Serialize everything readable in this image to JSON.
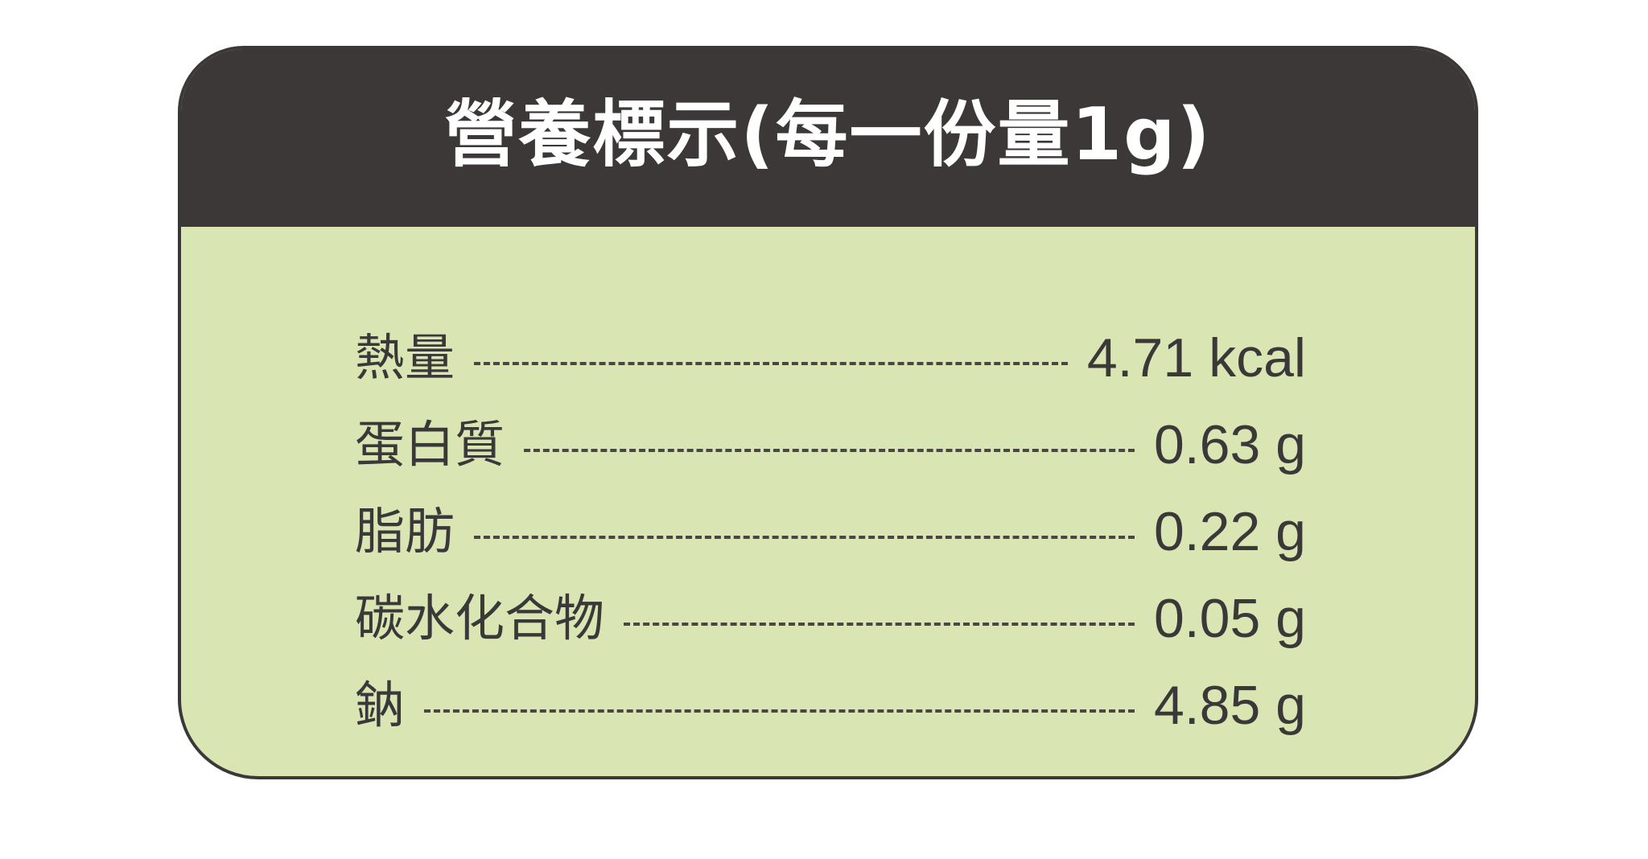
{
  "title": "營養標示(每一份量1g)",
  "colors": {
    "header": "#3c3838",
    "panel": "#d9e5b3",
    "text": "#3a3838",
    "background": "#ffffff"
  },
  "rows": [
    {
      "label": "熱量",
      "value": "4.71 kcal"
    },
    {
      "label": "蛋白質",
      "value": "0.63 g"
    },
    {
      "label": "脂肪",
      "value": "0.22 g"
    },
    {
      "label": "碳水化合物",
      "value": "0.05 g"
    },
    {
      "label": "鈉",
      "value": "4.85 g"
    }
  ]
}
